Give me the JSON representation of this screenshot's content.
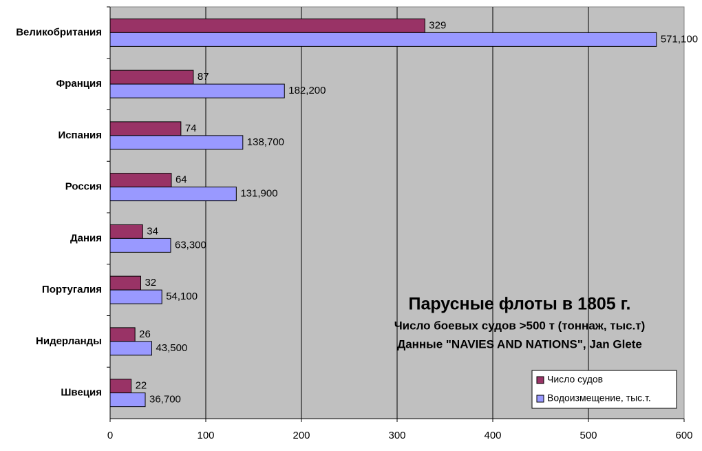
{
  "chart_data": {
    "type": "barh",
    "title": "Парусные флоты в 1805 г.",
    "annotations": [
      "Число боевых судов >500 т (тоннаж, тыс.т)",
      "Данные \"NAVIES AND NATIONS\", Jan Glete"
    ],
    "categories": [
      "Великобритания",
      "Франция",
      "Испания",
      "Россия",
      "Дания",
      "Португалия",
      "Нидерланды",
      "Швеция"
    ],
    "series": [
      {
        "name": "Число судов",
        "color": "#993366",
        "values": [
          329,
          87,
          74,
          64,
          34,
          32,
          26,
          22
        ]
      },
      {
        "name": "Водоизмещение, тыс.т.",
        "color": "#9999ff",
        "values": [
          571.1,
          182.2,
          138.7,
          131.9,
          63.3,
          54.1,
          43.5,
          36.7
        ],
        "value_labels": [
          "571,100",
          "182,200",
          "138,700",
          "131,900",
          "63,300",
          "54,100",
          "43,500",
          "36,700"
        ]
      }
    ],
    "xlim": [
      0,
      600
    ],
    "xticks": [
      0,
      100,
      200,
      300,
      400,
      500,
      600
    ],
    "grid": true,
    "legend": "lower right",
    "background": "#c0c0c0"
  }
}
